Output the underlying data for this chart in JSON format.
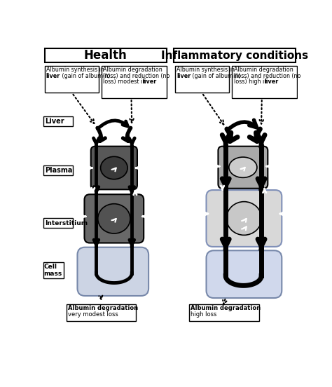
{
  "title_left": "Health",
  "title_right": "Inflammatory conditions",
  "label_liver": "Liver",
  "label_plasma": "Plasma",
  "label_interstitium": "Interstitium",
  "label_cell_mass": "Cell\nmass",
  "syn_h_l1": "Albumin synthesis in",
  "syn_h_l2": "liver (gain of albumin)",
  "deg_h_l1": "Albumin degradation",
  "deg_h_l2": "(loss) and reduction (no",
  "deg_h_l3": "loss) modest in liver",
  "syn_i_l1": "Albumin synthesis in",
  "syn_i_l2": "liver (gain of albumin)",
  "deg_i_l1": "Albumin degradation",
  "deg_i_l2": "(loss) and reduction (no",
  "deg_i_l3": "loss) high in liver",
  "bot_h_l1": "Albumin degradation",
  "bot_h_l2": "very modest loss",
  "bot_i_l1": "Albumin degradation",
  "bot_i_l2": "high loss"
}
